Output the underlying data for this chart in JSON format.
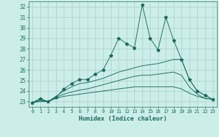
{
  "xlabel": "Humidex (Indice chaleur)",
  "background_color": "#cceee8",
  "grid_color": "#aacccc",
  "line_color": "#1a6b5e",
  "xlim": [
    -0.5,
    23.5
  ],
  "ylim": [
    22.5,
    32.5
  ],
  "yticks": [
    23,
    24,
    25,
    26,
    27,
    28,
    29,
    30,
    31,
    32
  ],
  "xticks": [
    0,
    1,
    2,
    3,
    4,
    5,
    6,
    7,
    8,
    9,
    10,
    11,
    12,
    13,
    14,
    15,
    16,
    17,
    18,
    19,
    20,
    21,
    22,
    23
  ],
  "series": [
    {
      "x": [
        0,
        1,
        2,
        3,
        4,
        5,
        6,
        7,
        8,
        9,
        10,
        11,
        12,
        13,
        14,
        15,
        16,
        17,
        18,
        19,
        20,
        21,
        22,
        23
      ],
      "y": [
        22.9,
        23.3,
        23.0,
        23.4,
        24.2,
        24.7,
        25.1,
        25.1,
        25.6,
        26.0,
        27.4,
        29.0,
        28.5,
        28.1,
        32.2,
        29.0,
        27.9,
        31.0,
        28.8,
        27.0,
        25.1,
        24.0,
        23.6,
        23.2
      ],
      "marker": "*",
      "markersize": 3.5
    },
    {
      "x": [
        0,
        1,
        2,
        3,
        4,
        5,
        6,
        7,
        8,
        9,
        10,
        11,
        12,
        13,
        14,
        15,
        16,
        17,
        18,
        19,
        20,
        21,
        22,
        23
      ],
      "y": [
        22.9,
        23.2,
        23.0,
        23.5,
        24.0,
        24.4,
        24.7,
        24.8,
        25.0,
        25.2,
        25.5,
        25.8,
        26.0,
        26.2,
        26.4,
        26.5,
        26.6,
        26.8,
        27.0,
        27.0,
        25.1,
        24.0,
        23.6,
        23.2
      ],
      "has_marker": false
    },
    {
      "x": [
        0,
        1,
        2,
        3,
        4,
        5,
        6,
        7,
        8,
        9,
        10,
        11,
        12,
        13,
        14,
        15,
        16,
        17,
        18,
        19,
        20,
        21,
        22,
        23
      ],
      "y": [
        22.9,
        23.1,
        23.0,
        23.4,
        23.7,
        23.9,
        24.1,
        24.2,
        24.4,
        24.6,
        24.8,
        25.0,
        25.2,
        25.4,
        25.5,
        25.5,
        25.6,
        25.7,
        25.8,
        25.5,
        24.4,
        23.7,
        23.3,
        23.2
      ],
      "has_marker": false
    },
    {
      "x": [
        0,
        1,
        2,
        3,
        4,
        5,
        6,
        7,
        8,
        9,
        10,
        11,
        12,
        13,
        14,
        15,
        16,
        17,
        18,
        19,
        20,
        21,
        22,
        23
      ],
      "y": [
        22.9,
        23.0,
        23.0,
        23.3,
        23.5,
        23.6,
        23.7,
        23.8,
        23.9,
        24.0,
        24.1,
        24.2,
        24.3,
        24.4,
        24.4,
        24.4,
        24.4,
        24.4,
        24.4,
        24.2,
        23.8,
        23.5,
        23.3,
        23.2
      ],
      "has_marker": false
    }
  ]
}
